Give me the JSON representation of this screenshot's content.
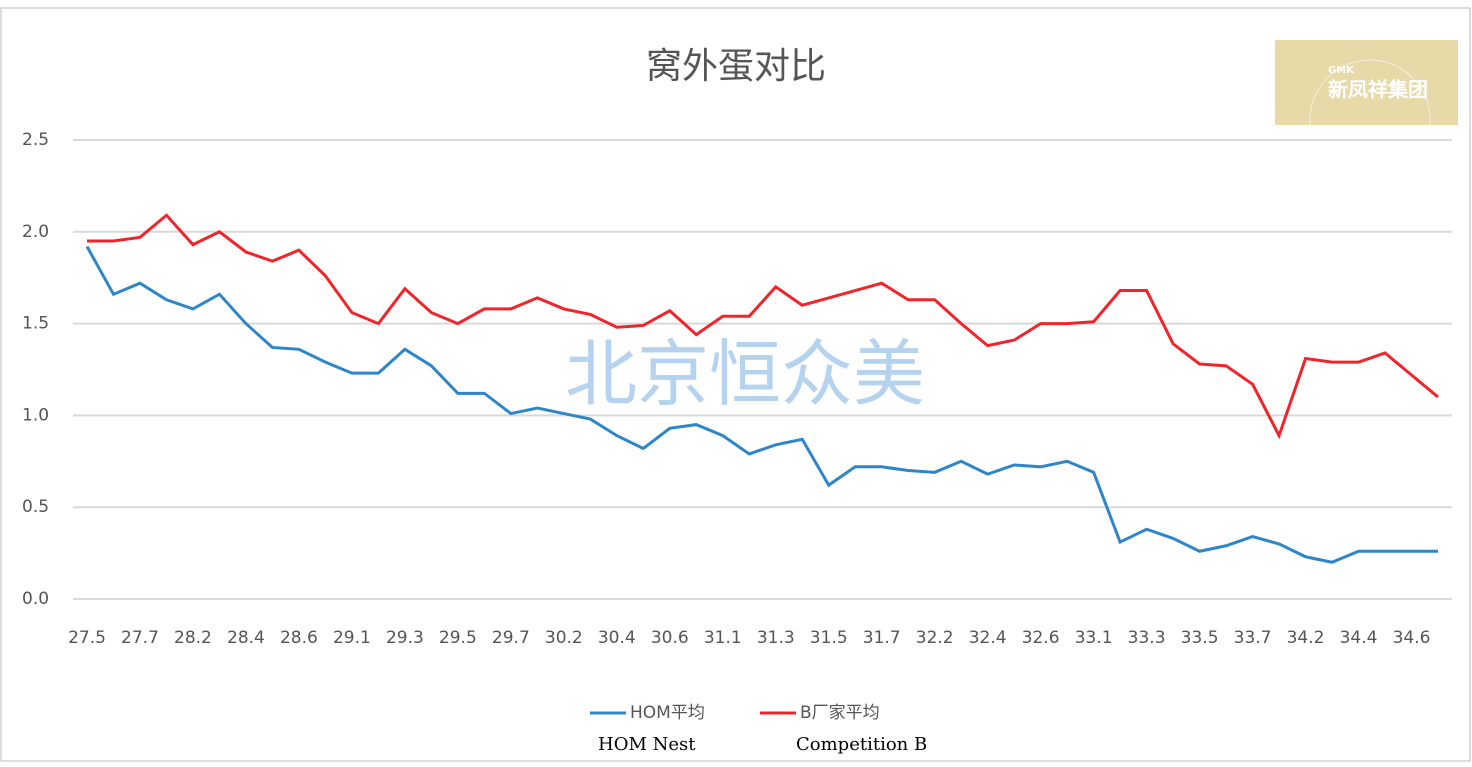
{
  "chart_data": {
    "type": "line",
    "title": "窝外蛋对比",
    "categories": [
      "27.5",
      null,
      "27.7",
      null,
      "28.2",
      null,
      "28.4",
      null,
      "28.6",
      null,
      "29.1",
      null,
      "29.3",
      null,
      "29.5",
      null,
      "29.7",
      null,
      "30.2",
      null,
      "30.4",
      null,
      "30.6",
      null,
      "31.1",
      null,
      "31.3",
      null,
      "31.5",
      null,
      "31.7",
      null,
      "32.2",
      null,
      "32.4",
      null,
      "32.6",
      null,
      "33.1",
      null,
      "33.3",
      null,
      "33.5",
      null,
      "33.7",
      null,
      "34.2",
      null,
      "34.4",
      null,
      "34.6",
      null
    ],
    "series": [
      {
        "name": "HOM平均",
        "color": "#2e86c8",
        "values": [
          1.92,
          1.66,
          1.72,
          1.63,
          1.58,
          1.66,
          1.5,
          1.37,
          1.36,
          1.29,
          1.23,
          1.23,
          1.36,
          1.27,
          1.12,
          1.12,
          1.01,
          1.04,
          1.01,
          0.98,
          0.89,
          0.82,
          0.93,
          0.95,
          0.89,
          0.79,
          0.84,
          0.87,
          0.62,
          0.72,
          0.72,
          0.7,
          0.69,
          0.75,
          0.68,
          0.73,
          0.72,
          0.75,
          0.69,
          0.31,
          0.38,
          0.33,
          0.26,
          0.29,
          0.34,
          0.3,
          0.23,
          0.2,
          0.26,
          0.26,
          0.26,
          0.26
        ]
      },
      {
        "name": "B厂家平均",
        "color": "#f0242a",
        "values": [
          1.95,
          1.95,
          1.97,
          2.09,
          1.93,
          2.0,
          1.89,
          1.84,
          1.9,
          1.76,
          1.56,
          1.5,
          1.69,
          1.56,
          1.5,
          1.58,
          1.58,
          1.64,
          1.58,
          1.55,
          1.48,
          1.49,
          1.57,
          1.44,
          1.54,
          1.54,
          1.7,
          1.6,
          1.64,
          1.68,
          1.72,
          1.63,
          1.63,
          1.5,
          1.38,
          1.41,
          1.5,
          1.5,
          1.51,
          1.68,
          1.68,
          1.39,
          1.28,
          1.27,
          1.17,
          0.89,
          1.31,
          1.29,
          1.29,
          1.34,
          1.22,
          1.1
        ]
      }
    ],
    "ylim": [
      0,
      2.5
    ],
    "yticks": [
      {
        "value": 0,
        "label": "0.0"
      },
      0.5,
      {
        "value": 1,
        "label": "1.0"
      },
      1.5,
      {
        "value": 2,
        "label": "2.0"
      },
      2.5
    ],
    "grid": true,
    "legend": "bottom",
    "legend_notes": [
      "HOM Nest",
      "Competition B"
    ],
    "watermark": "北京恒众美",
    "logo": {
      "small": "GMK",
      "name": "新凤祥集团"
    }
  }
}
